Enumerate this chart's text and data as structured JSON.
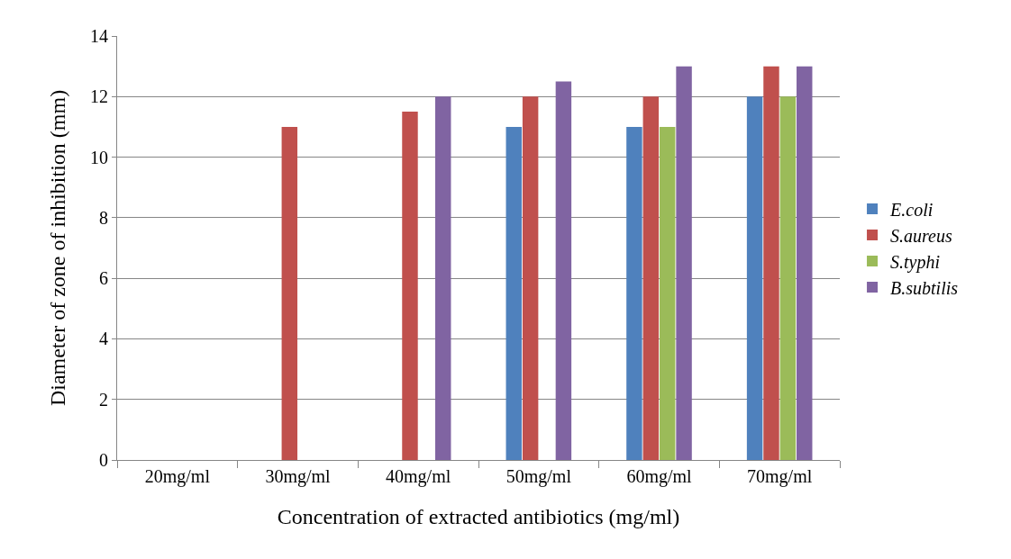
{
  "chart_data": {
    "type": "bar",
    "xlabel": "Concentration of extracted antibiotics (mg/ml)",
    "ylabel": "Diameter of zone of inhibition (mm)",
    "categories": [
      "20mg/ml",
      "30mg/ml",
      "40mg/ml",
      "50mg/ml",
      "60mg/ml",
      "70mg/ml"
    ],
    "series": [
      {
        "name": "E.coli",
        "color": "#4f81bd",
        "values": [
          0,
          0,
          0,
          11,
          11,
          12
        ]
      },
      {
        "name": "S.aureus",
        "color": "#c0504d",
        "values": [
          0,
          11,
          11.5,
          12,
          12,
          13
        ]
      },
      {
        "name": "S.typhi",
        "color": "#9bbb59",
        "values": [
          0,
          0,
          0,
          0,
          11,
          12
        ]
      },
      {
        "name": "B.subtilis",
        "color": "#8064a2",
        "values": [
          0,
          0,
          12,
          12.5,
          13,
          13
        ]
      }
    ],
    "ylim": [
      0,
      14
    ],
    "yticks": [
      0,
      2,
      4,
      6,
      8,
      10,
      12,
      14
    ],
    "grid": "y",
    "legend": "right"
  }
}
